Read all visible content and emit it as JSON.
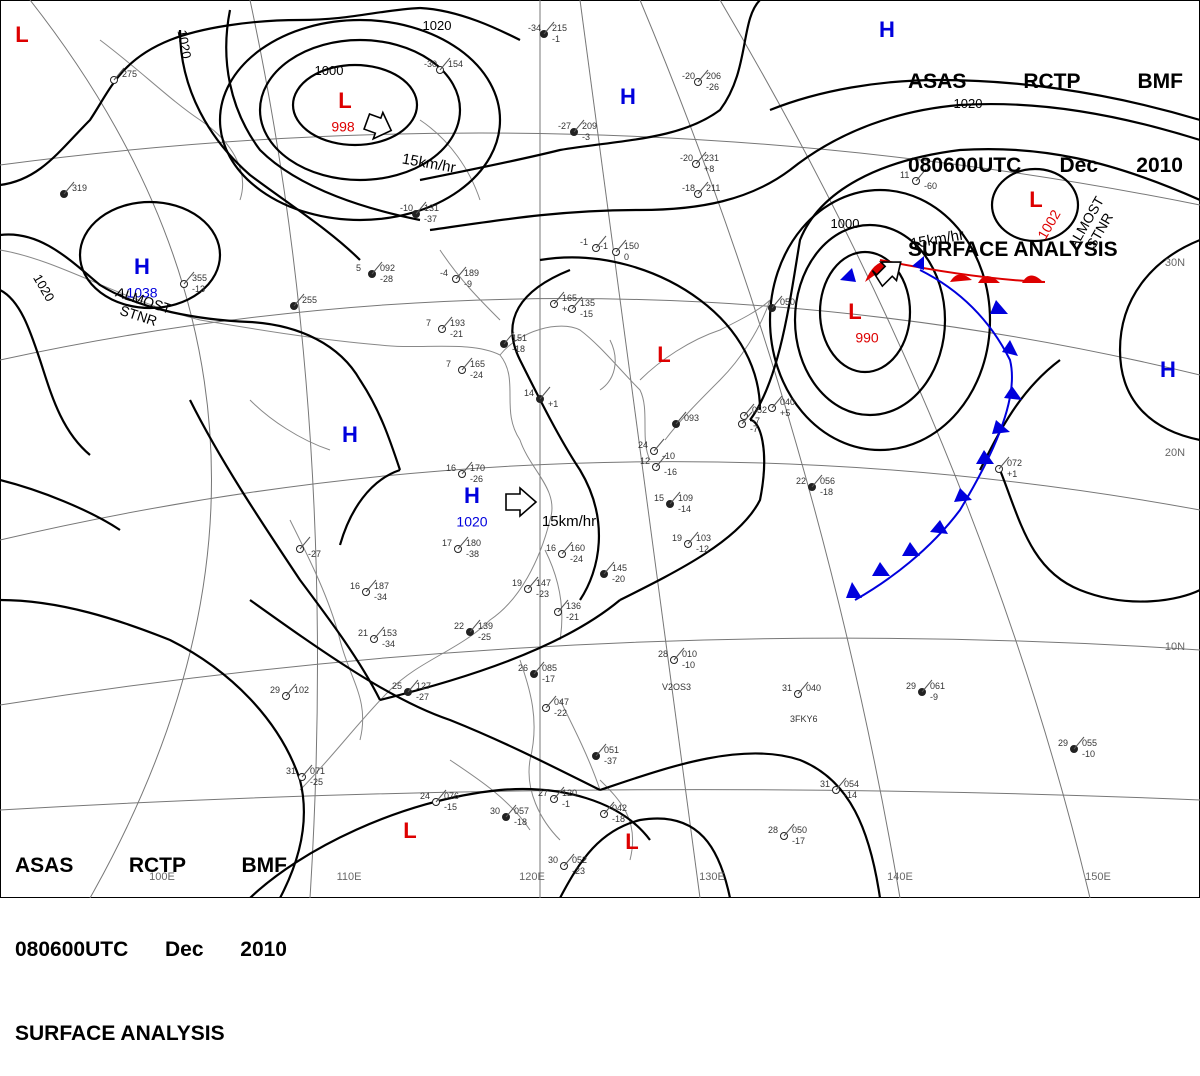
{
  "header": {
    "agency": "ASAS",
    "station": "RCTP",
    "office": "BMF",
    "datetime": "080600UTC",
    "month": "Dec",
    "year": "2010",
    "product": "SURFACE ANALYSIS"
  },
  "pressure_centers": [
    {
      "kind": "H",
      "value": "1038",
      "color": "#0000dd"
    },
    {
      "kind": "L",
      "value": "998",
      "color": "#dd0000"
    },
    {
      "kind": "H",
      "value": "",
      "color": "#0000dd"
    },
    {
      "kind": "H",
      "value": "1020",
      "color": "#0000dd"
    },
    {
      "kind": "L",
      "value": "990",
      "color": "#dd0000"
    },
    {
      "kind": "L",
      "value": "1002",
      "color": "#dd0000"
    },
    {
      "kind": "H",
      "value": "",
      "color": "#0000dd"
    },
    {
      "kind": "H",
      "value": "",
      "color": "#0000dd"
    },
    {
      "kind": "H",
      "value": "",
      "color": "#0000dd"
    },
    {
      "kind": "L",
      "value": "",
      "color": "#dd0000"
    },
    {
      "kind": "L",
      "value": "",
      "color": "#dd0000"
    },
    {
      "kind": "L",
      "value": "",
      "color": "#dd0000"
    },
    {
      "kind": "L",
      "value": "",
      "color": "#dd0000"
    }
  ],
  "isobar_labels": [
    "1020",
    "1020",
    "1020",
    "1000",
    "1000",
    "1020"
  ],
  "motion_labels": [
    "15km/hr",
    "15km/hr",
    "15km/hr"
  ],
  "stationary_notes": [
    {
      "line1": "ALMOST",
      "line2": "STNR"
    },
    {
      "line1": "ALMOST",
      "line2": "STNR"
    }
  ],
  "longitude_labels": [
    "100E",
    "110E",
    "120E",
    "130E",
    "140E",
    "150E"
  ],
  "latitude_labels": [
    "30N",
    "20N",
    "10N"
  ],
  "station_plots": [
    {
      "t": "-34",
      "p": "215",
      "d": "-1"
    },
    {
      "t": "-30",
      "p": "154",
      "d": ""
    },
    {
      "t": "-20",
      "p": "206",
      "d": "-26"
    },
    {
      "t": "-27",
      "p": "209",
      "d": "-3"
    },
    {
      "t": "-20",
      "p": "231",
      "d": "+8"
    },
    {
      "t": "-18",
      "p": "211",
      "d": ""
    },
    {
      "t": "-10",
      "p": "131",
      "d": "-37"
    },
    {
      "t": "-4",
      "p": "189",
      "d": "-9"
    },
    {
      "t": "-1",
      "p": "150",
      "d": "0"
    },
    {
      "t": "5",
      "p": "092",
      "d": "-28"
    },
    {
      "t": "7",
      "p": "193",
      "d": "-21"
    },
    {
      "t": "7",
      "p": "165",
      "d": "-24"
    },
    {
      "t": "",
      "p": "151",
      "d": "-18"
    },
    {
      "t": "",
      "p": "165",
      "d": "+4"
    },
    {
      "t": "",
      "p": "135",
      "d": "-15"
    },
    {
      "t": "14",
      "p": "",
      "d": "+1"
    },
    {
      "t": "16",
      "p": "170",
      "d": "-26"
    },
    {
      "t": "17",
      "p": "180",
      "d": "-38"
    },
    {
      "t": "15",
      "p": "109",
      "d": "-14"
    },
    {
      "t": "16",
      "p": "160",
      "d": "-24"
    },
    {
      "t": "19",
      "p": "103",
      "d": "-12"
    },
    {
      "t": "",
      "p": "145",
      "d": "-20"
    },
    {
      "t": "19",
      "p": "147",
      "d": "-23"
    },
    {
      "t": "",
      "p": "136",
      "d": "-21"
    },
    {
      "t": "22",
      "p": "139",
      "d": "-25"
    },
    {
      "t": "16",
      "p": "187",
      "d": "-34"
    },
    {
      "t": "21",
      "p": "153",
      "d": "-34"
    },
    {
      "t": "25",
      "p": "127",
      "d": "-27"
    },
    {
      "t": "29",
      "p": "102",
      "d": ""
    },
    {
      "t": "31",
      "p": "071",
      "d": "-25"
    },
    {
      "t": "26",
      "p": "085",
      "d": "-17"
    },
    {
      "t": "",
      "p": "047",
      "d": "-22"
    },
    {
      "t": "28",
      "p": "010",
      "d": "-10"
    },
    {
      "t": "",
      "p": "051",
      "d": "-37"
    },
    {
      "t": "27",
      "p": "120",
      "d": "-1"
    },
    {
      "t": "24",
      "p": "076",
      "d": "-15"
    },
    {
      "t": "30",
      "p": "057",
      "d": "-18"
    },
    {
      "t": "30",
      "p": "052",
      "d": "-23"
    },
    {
      "t": "",
      "p": "042",
      "d": "-18"
    },
    {
      "t": "22",
      "p": "056",
      "d": "-18"
    },
    {
      "t": "",
      "p": "072",
      "d": "+1"
    },
    {
      "t": "31",
      "p": "040",
      "d": ""
    },
    {
      "t": "29",
      "p": "061",
      "d": "-9"
    },
    {
      "t": "31",
      "p": "054",
      "d": "-14"
    },
    {
      "t": "28",
      "p": "050",
      "d": "-17"
    },
    {
      "t": "29",
      "p": "055",
      "d": "-10"
    },
    {
      "t": "",
      "p": "040",
      "d": "+5"
    },
    {
      "t": "",
      "p": "052",
      "d": "-7"
    },
    {
      "t": "",
      "p": "050",
      "d": ""
    },
    {
      "t": "-1",
      "p": "",
      "d": ""
    },
    {
      "t": "11",
      "p": "",
      "d": "-60"
    },
    {
      "t": "",
      "p": "319",
      "d": ""
    },
    {
      "t": "",
      "p": "355",
      "d": "-13"
    },
    {
      "t": "",
      "p": "275",
      "d": ""
    },
    {
      "t": "",
      "p": "255",
      "d": ""
    },
    {
      "t": "24",
      "p": "",
      "d": "-10"
    },
    {
      "t": "12",
      "p": "",
      "d": "-16"
    },
    {
      "t": "",
      "p": "093",
      "d": ""
    },
    {
      "t": "",
      "p": "",
      "d": "-27"
    },
    {
      "t": "",
      "p": "",
      "d": "-7"
    }
  ],
  "ship_ids": [
    "V2OS3",
    "3FKY6"
  ]
}
